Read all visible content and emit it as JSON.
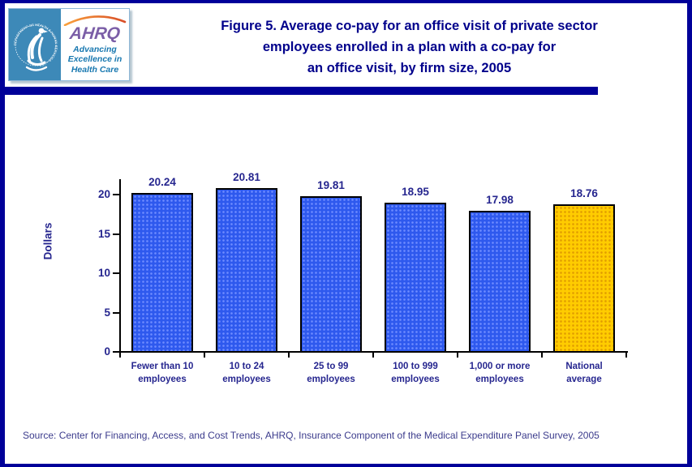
{
  "header": {
    "hhs_logo": {
      "seal_text": "DEPARTMENT OF HEALTH & HUMAN SERVICES • USA"
    },
    "ahrq_logo": {
      "wordmark": "AHRQ",
      "tagline_lines": [
        "Advancing",
        "Excellence in",
        "Health Care"
      ]
    },
    "title_lines": [
      "Figure 5. Average co-pay for an office visit of private sector",
      "employees enrolled in a plan with a co-pay for",
      "an office visit, by firm size, 2005"
    ]
  },
  "chart_data": {
    "type": "bar",
    "title": "Figure 5. Average co-pay for an office visit of private sector employees enrolled in a plan with a co-pay for an office visit, by firm size, 2005",
    "xlabel": "",
    "ylabel": "Dollars",
    "categories": [
      "Fewer than 10\nemployees",
      "10 to 24\nemployees",
      "25 to 99\nemployees",
      "100 to 999\nemployees",
      "1,000 or more\nemployees",
      "National\naverage"
    ],
    "values": [
      20.24,
      20.81,
      19.81,
      18.95,
      17.98,
      18.76
    ],
    "value_labels": [
      "20.24",
      "20.81",
      "19.81",
      "18.95",
      "17.98",
      "18.76"
    ],
    "yticks": [
      0,
      5,
      10,
      15,
      20
    ],
    "ytick_labels": [
      "0",
      "5",
      "10",
      "15",
      "20"
    ],
    "ylim": [
      0,
      21.8
    ],
    "grid": false,
    "legend": false,
    "bar_colors": [
      "#2E59EE",
      "#2E59EE",
      "#2E59EE",
      "#2E59EE",
      "#2E59EE",
      "#FFCC00"
    ],
    "bar_dot_colors": [
      "#6E8CFF",
      "#6E8CFF",
      "#6E8CFF",
      "#6E8CFF",
      "#6E8CFF",
      "#E09C00"
    ],
    "highlight_index": 5
  },
  "source_note": "Source: Center for Financing, Access, and Cost Trends, AHRQ, Insurance Component of the Medical Expenditure Panel Survey, 2005",
  "colors": {
    "border_navy": "#000099",
    "title_navy": "#00008B",
    "chart_text_navy": "#26268F",
    "bar_blue": "#2E59EE",
    "bar_gold": "#FFCC00",
    "hhs_blue": "#3D89B8",
    "ahrq_purple": "#7B5EA7",
    "tagline_blue": "#1878B0"
  }
}
